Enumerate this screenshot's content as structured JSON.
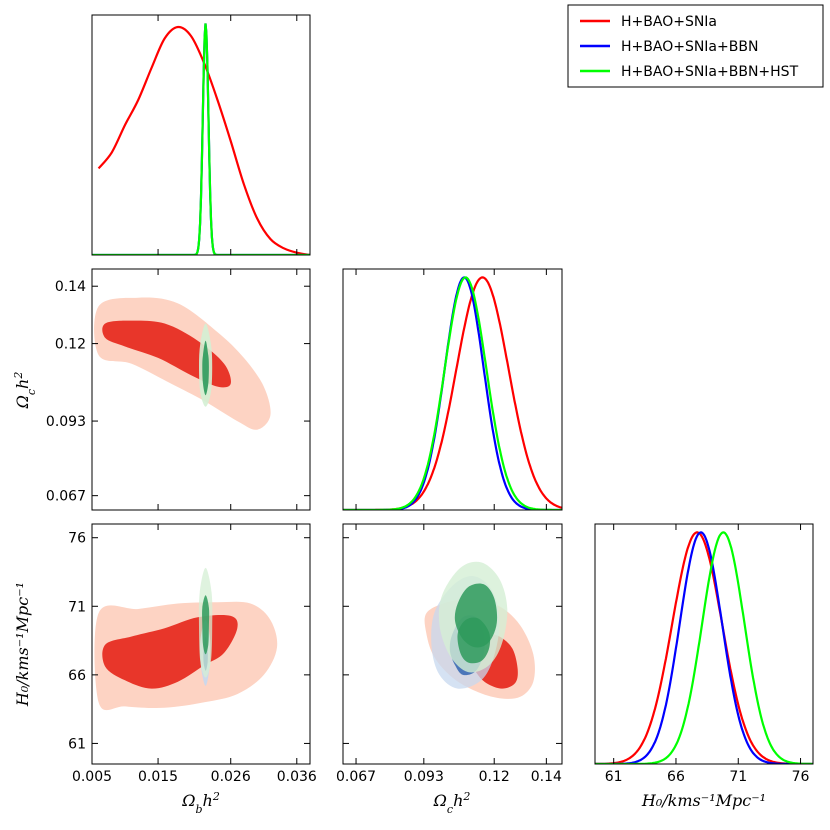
{
  "colors": {
    "red": "#ff0000",
    "blue": "#0000ff",
    "green": "#00ff00",
    "red_fill_inner": "#e8362a",
    "red_fill_outer": "#fdd3c3",
    "blue_fill_inner": "#3c6cb4",
    "blue_fill_outer": "#c7d8ef",
    "green_fill_inner": "#2e9a5c",
    "green_fill_outer": "#d4efd4"
  },
  "legend": {
    "entries": [
      {
        "label": "H+BAO+SNIa",
        "color": "#ff0000"
      },
      {
        "label": "H+BAO+SNIa+BBN",
        "color": "#0000ff"
      },
      {
        "label": "H+BAO+SNIa+BBN+HST",
        "color": "#00ff00"
      }
    ]
  },
  "chart_data": {
    "type": "triangle-corner-plot",
    "parameters": [
      {
        "name": "Omega_b h^2",
        "label_main": "Ω",
        "label_sub": "b",
        "label_tail": "h",
        "label_sup": "2",
        "range": [
          0.005,
          0.038
        ],
        "ticks": [
          0.005,
          0.015,
          0.026,
          0.036
        ],
        "tick_labels": [
          "0.005",
          "0.015",
          "0.026",
          "0.036"
        ]
      },
      {
        "name": "Omega_c h^2",
        "label_main": "Ω",
        "label_sub": "c",
        "label_tail": "h",
        "label_sup": "2",
        "range": [
          0.062,
          0.146
        ],
        "ticks": [
          0.067,
          0.093,
          0.12,
          0.14
        ],
        "tick_labels": [
          "0.067",
          "0.093",
          "0.12",
          "0.14"
        ]
      },
      {
        "name": "H_0 / km s^-1 Mpc^-1",
        "label": "H₀/kms⁻¹Mpc⁻¹",
        "range": [
          59.5,
          77
        ],
        "ticks": [
          61,
          66,
          71,
          76
        ],
        "tick_labels": [
          "61",
          "66",
          "71",
          "76"
        ]
      }
    ],
    "marginals": {
      "omega_b": [
        {
          "series": "H+BAO+SNIa",
          "color": "#ff0000",
          "x": [
            0.006,
            0.008,
            0.01,
            0.012,
            0.014,
            0.016,
            0.018,
            0.02,
            0.022,
            0.024,
            0.026,
            0.028,
            0.03,
            0.032,
            0.034,
            0.036,
            0.038
          ],
          "y": [
            0.38,
            0.45,
            0.57,
            0.68,
            0.82,
            0.95,
            1.0,
            0.96,
            0.84,
            0.68,
            0.5,
            0.31,
            0.16,
            0.07,
            0.03,
            0.01,
            0.0
          ]
        },
        {
          "series": "H+BAO+SNIa+BBN",
          "color": "#0000ff",
          "peak": 0.0222,
          "sigma": 0.00042
        },
        {
          "series": "H+BAO+SNIa+BBN+HST",
          "color": "#00ff00",
          "peak": 0.0222,
          "sigma": 0.00042
        }
      ],
      "omega_c": [
        {
          "series": "H+BAO+SNIa",
          "color": "#ff0000",
          "peak": 0.1155,
          "sigma": 0.01
        },
        {
          "series": "H+BAO+SNIa+BBN",
          "color": "#0000ff",
          "peak": 0.1085,
          "sigma": 0.0075
        },
        {
          "series": "H+BAO+SNIa+BBN+HST",
          "color": "#00ff00",
          "peak": 0.109,
          "sigma": 0.008
        }
      ],
      "h0": [
        {
          "series": "H+BAO+SNIa",
          "color": "#ff0000",
          "peak": 67.7,
          "sigma": 2.0
        },
        {
          "series": "H+BAO+SNIa+BBN",
          "color": "#0000ff",
          "peak": 68.0,
          "sigma": 1.7
        },
        {
          "series": "H+BAO+SNIa+BBN+HST",
          "color": "#00ff00",
          "peak": 69.8,
          "sigma": 1.7
        }
      ]
    },
    "contours": {
      "omega_b_vs_omega_c": {
        "red_outer": [
          [
            0.006,
            0.133
          ],
          [
            0.012,
            0.136
          ],
          [
            0.018,
            0.134
          ],
          [
            0.024,
            0.124
          ],
          [
            0.028,
            0.115
          ],
          [
            0.031,
            0.105
          ],
          [
            0.032,
            0.095
          ],
          [
            0.03,
            0.09
          ],
          [
            0.027,
            0.093
          ],
          [
            0.022,
            0.1
          ],
          [
            0.017,
            0.106
          ],
          [
            0.011,
            0.113
          ],
          [
            0.006,
            0.116
          ]
        ],
        "red_inner": [
          [
            0.007,
            0.127
          ],
          [
            0.011,
            0.128
          ],
          [
            0.016,
            0.127
          ],
          [
            0.021,
            0.121
          ],
          [
            0.025,
            0.113
          ],
          [
            0.026,
            0.106
          ],
          [
            0.024,
            0.105
          ],
          [
            0.02,
            0.109
          ],
          [
            0.015,
            0.115
          ],
          [
            0.01,
            0.119
          ],
          [
            0.007,
            0.122
          ]
        ],
        "green_outer": [
          [
            0.0222,
            0.127
          ],
          [
            0.023,
            0.12
          ],
          [
            0.0232,
            0.112
          ],
          [
            0.023,
            0.103
          ],
          [
            0.0222,
            0.098
          ],
          [
            0.0214,
            0.103
          ],
          [
            0.0212,
            0.112
          ],
          [
            0.0214,
            0.12
          ]
        ],
        "green_inner": [
          [
            0.0222,
            0.121
          ],
          [
            0.0226,
            0.116
          ],
          [
            0.0227,
            0.112
          ],
          [
            0.0226,
            0.106
          ],
          [
            0.0222,
            0.102
          ],
          [
            0.0218,
            0.106
          ],
          [
            0.0217,
            0.112
          ],
          [
            0.0218,
            0.116
          ]
        ]
      },
      "omega_b_vs_h0": {
        "red_outer": [
          [
            0.006,
            70.5
          ],
          [
            0.012,
            70.8
          ],
          [
            0.018,
            71.2
          ],
          [
            0.024,
            71.3
          ],
          [
            0.029,
            71.2
          ],
          [
            0.032,
            70.0
          ],
          [
            0.033,
            68.0
          ],
          [
            0.031,
            66.0
          ],
          [
            0.027,
            64.6
          ],
          [
            0.022,
            64.0
          ],
          [
            0.016,
            63.6
          ],
          [
            0.01,
            63.7
          ],
          [
            0.006,
            64.0
          ]
        ],
        "red_inner": [
          [
            0.007,
            68.2
          ],
          [
            0.011,
            68.8
          ],
          [
            0.016,
            69.4
          ],
          [
            0.021,
            70.2
          ],
          [
            0.026,
            70.3
          ],
          [
            0.027,
            69.4
          ],
          [
            0.025,
            67.6
          ],
          [
            0.022,
            66.7
          ],
          [
            0.018,
            65.5
          ],
          [
            0.014,
            65.0
          ],
          [
            0.01,
            65.6
          ],
          [
            0.007,
            66.6
          ]
        ],
        "blue_outer": [
          [
            0.0222,
            70.0
          ],
          [
            0.0229,
            68.5
          ],
          [
            0.0228,
            66.6
          ],
          [
            0.0222,
            65.2
          ],
          [
            0.0215,
            66.6
          ],
          [
            0.0214,
            68.5
          ]
        ],
        "blue_inner": [
          [
            0.0222,
            68.8
          ],
          [
            0.0225,
            67.8
          ],
          [
            0.0225,
            66.9
          ],
          [
            0.0222,
            66.3
          ],
          [
            0.0219,
            66.9
          ],
          [
            0.0219,
            67.8
          ]
        ],
        "green_outer": [
          [
            0.0222,
            73.8
          ],
          [
            0.0231,
            72.0
          ],
          [
            0.0232,
            69.5
          ],
          [
            0.023,
            67.0
          ],
          [
            0.0222,
            65.8
          ],
          [
            0.0214,
            67.0
          ],
          [
            0.0212,
            69.5
          ],
          [
            0.0213,
            72.0
          ]
        ],
        "green_inner": [
          [
            0.0222,
            71.8
          ],
          [
            0.0227,
            70.9
          ],
          [
            0.0227,
            69.6
          ],
          [
            0.0226,
            68.2
          ],
          [
            0.0222,
            67.5
          ],
          [
            0.0218,
            68.2
          ],
          [
            0.0217,
            69.6
          ],
          [
            0.0217,
            70.9
          ]
        ]
      },
      "omega_c_vs_h0": {
        "red_outer": [
          [
            0.094,
            70.5
          ],
          [
            0.102,
            71.3
          ],
          [
            0.112,
            71.5
          ],
          [
            0.122,
            71.0
          ],
          [
            0.13,
            69.6
          ],
          [
            0.135,
            67.5
          ],
          [
            0.135,
            65.5
          ],
          [
            0.13,
            64.4
          ],
          [
            0.122,
            64.3
          ],
          [
            0.113,
            64.8
          ],
          [
            0.104,
            65.8
          ],
          [
            0.097,
            67.3
          ],
          [
            0.094,
            69.0
          ]
        ],
        "red_inner": [
          [
            0.112,
            68.2
          ],
          [
            0.117,
            68.9
          ],
          [
            0.122,
            68.8
          ],
          [
            0.127,
            67.9
          ],
          [
            0.129,
            66.4
          ],
          [
            0.128,
            65.4
          ],
          [
            0.123,
            65.0
          ],
          [
            0.117,
            65.4
          ],
          [
            0.113,
            66.2
          ],
          [
            0.111,
            67.2
          ]
        ],
        "blue_outer": [
          [
            0.097,
            70.5
          ],
          [
            0.104,
            72.5
          ],
          [
            0.112,
            73.2
          ],
          [
            0.119,
            72.2
          ],
          [
            0.122,
            70.0
          ],
          [
            0.12,
            67.4
          ],
          [
            0.115,
            65.6
          ],
          [
            0.106,
            65.0
          ],
          [
            0.099,
            66.0
          ],
          [
            0.096,
            68.0
          ]
        ],
        "blue_inner": [
          [
            0.104,
            69.0
          ],
          [
            0.108,
            70.2
          ],
          [
            0.113,
            70.2
          ],
          [
            0.116,
            69.0
          ],
          [
            0.116,
            67.6
          ],
          [
            0.113,
            66.3
          ],
          [
            0.108,
            66.0
          ],
          [
            0.105,
            66.7
          ],
          [
            0.103,
            67.8
          ]
        ],
        "green_outer": [
          [
            0.1,
            71.8
          ],
          [
            0.107,
            73.8
          ],
          [
            0.115,
            74.2
          ],
          [
            0.122,
            73.0
          ],
          [
            0.125,
            70.8
          ],
          [
            0.123,
            68.3
          ],
          [
            0.118,
            66.7
          ],
          [
            0.11,
            66.2
          ],
          [
            0.103,
            67.4
          ],
          [
            0.099,
            69.6
          ]
        ],
        "green_inner": [
          [
            0.106,
            71.2
          ],
          [
            0.11,
            72.4
          ],
          [
            0.116,
            72.6
          ],
          [
            0.12,
            71.6
          ],
          [
            0.121,
            69.8
          ],
          [
            0.118,
            68.4
          ],
          [
            0.113,
            68.0
          ],
          [
            0.108,
            68.6
          ],
          [
            0.105,
            69.9
          ]
        ],
        "green_inner2": [
          [
            0.106,
            69.0
          ],
          [
            0.109,
            70.0
          ],
          [
            0.114,
            70.1
          ],
          [
            0.118,
            69.1
          ],
          [
            0.118,
            67.9
          ],
          [
            0.115,
            67.0
          ],
          [
            0.11,
            66.9
          ],
          [
            0.107,
            67.6
          ]
        ]
      }
    }
  }
}
